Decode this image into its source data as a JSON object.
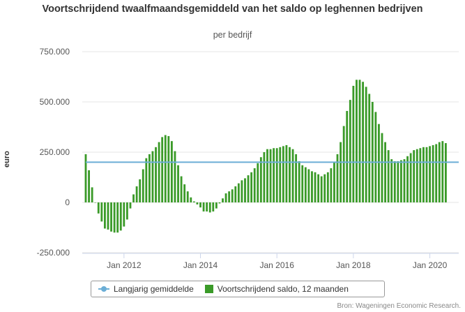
{
  "chart_data": {
    "type": "bar",
    "title": "Voortschrijdend twaalfmaandsgemiddeld van het saldo op leghennen bedrijven",
    "subtitle": "per bedrijf",
    "ylabel": "euro",
    "ylim": [
      -250000,
      750000
    ],
    "y_ticks": [
      "-250.000",
      "0",
      "250.000",
      "500.000",
      "750.000"
    ],
    "y_tick_values": [
      -250000,
      0,
      250000,
      500000,
      750000
    ],
    "x_ticks": [
      "Jan 2012",
      "Jan 2014",
      "Jan 2016",
      "Jan 2018",
      "Jan 2020"
    ],
    "x_tick_month_index": [
      12,
      36,
      60,
      84,
      108
    ],
    "grid": true,
    "legend": "bottom",
    "bar_interval": "month",
    "series": [
      {
        "name": "Voortschrijdend saldo, 12 maanden",
        "type": "bar",
        "color": "#3a9a28",
        "values": [
          240000,
          160000,
          75000,
          0,
          -55000,
          -95000,
          -130000,
          -135000,
          -145000,
          -150000,
          -150000,
          -140000,
          -120000,
          -85000,
          -30000,
          40000,
          80000,
          115000,
          165000,
          220000,
          240000,
          255000,
          275000,
          300000,
          325000,
          335000,
          330000,
          305000,
          255000,
          185000,
          130000,
          90000,
          55000,
          25000,
          5000,
          -10000,
          -25000,
          -45000,
          -45000,
          -50000,
          -45000,
          -30000,
          -5000,
          20000,
          45000,
          55000,
          65000,
          80000,
          95000,
          110000,
          120000,
          135000,
          150000,
          170000,
          195000,
          225000,
          250000,
          265000,
          265000,
          270000,
          270000,
          275000,
          280000,
          285000,
          275000,
          265000,
          240000,
          205000,
          185000,
          175000,
          165000,
          155000,
          150000,
          140000,
          130000,
          140000,
          150000,
          170000,
          200000,
          240000,
          300000,
          380000,
          455000,
          510000,
          580000,
          610000,
          610000,
          600000,
          575000,
          540000,
          500000,
          450000,
          390000,
          345000,
          300000,
          260000,
          215000,
          205000,
          205000,
          210000,
          215000,
          230000,
          245000,
          260000,
          265000,
          270000,
          275000,
          275000,
          280000,
          285000,
          290000,
          300000,
          305000,
          295000
        ]
      },
      {
        "name": "Langjarig gemiddelde",
        "type": "line",
        "color": "#6baed6",
        "value": 200000
      }
    ]
  },
  "legend": {
    "avg_label": "Langjarig gemiddelde",
    "bar_label": "Voortschrijdend saldo, 12 maanden"
  },
  "credits": "Bron: Wageningen Economic Research."
}
